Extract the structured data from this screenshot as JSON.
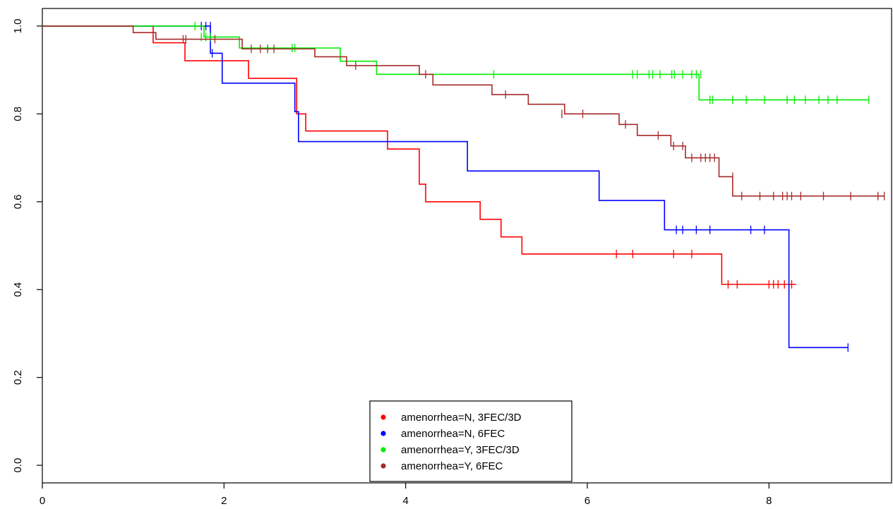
{
  "chart_data": {
    "type": "line",
    "title": "",
    "xlabel": "",
    "ylabel": "",
    "xlim": [
      0,
      9.35
    ],
    "ylim": [
      -0.04,
      1.04
    ],
    "x_ticks": [
      0,
      2,
      4,
      6,
      8
    ],
    "x_tick_labels": [
      "0",
      "2",
      "4",
      "6",
      "8"
    ],
    "y_ticks": [
      0.0,
      0.2,
      0.4,
      0.6,
      0.8,
      1.0
    ],
    "y_tick_labels": [
      "0.0",
      "0.2",
      "0.4",
      "0.6",
      "0.8",
      "1.0"
    ],
    "grid": false,
    "legend_position": "bottom-center",
    "step": true,
    "series": [
      {
        "name": "amenorrhea=N, 3FEC/3D",
        "color": "#ff0000",
        "steps": [
          [
            0,
            1.0
          ],
          [
            1.22,
            0.962
          ],
          [
            1.57,
            0.921
          ],
          [
            2.27,
            0.881
          ],
          [
            2.8,
            0.8
          ],
          [
            2.9,
            0.761
          ],
          [
            3.8,
            0.72
          ],
          [
            4.15,
            0.64
          ],
          [
            4.22,
            0.6
          ],
          [
            4.82,
            0.56
          ],
          [
            5.05,
            0.52
          ],
          [
            5.28,
            0.481
          ],
          [
            7.48,
            0.412
          ],
          [
            8.3,
            0.412
          ]
        ],
        "censored": [
          [
            6.32,
            0.481
          ],
          [
            6.5,
            0.481
          ],
          [
            6.95,
            0.481
          ],
          [
            7.15,
            0.481
          ],
          [
            7.55,
            0.412
          ],
          [
            7.65,
            0.412
          ],
          [
            8.0,
            0.412
          ],
          [
            8.05,
            0.412
          ],
          [
            8.1,
            0.412
          ],
          [
            8.17,
            0.412
          ],
          [
            8.25,
            0.412
          ]
        ]
      },
      {
        "name": "amenorrhea=N, 6FEC",
        "color": "#0000ff",
        "steps": [
          [
            0,
            1.0
          ],
          [
            1.85,
            0.938
          ],
          [
            1.98,
            0.87
          ],
          [
            2.78,
            0.805
          ],
          [
            2.82,
            0.737
          ],
          [
            4.68,
            0.67
          ],
          [
            6.13,
            0.603
          ],
          [
            6.85,
            0.536
          ],
          [
            8.22,
            0.268
          ],
          [
            8.87,
            0.268
          ]
        ],
        "censored": [
          [
            1.75,
            1.0
          ],
          [
            1.8,
            1.0
          ],
          [
            1.85,
            1.0
          ],
          [
            1.87,
            0.938
          ],
          [
            6.98,
            0.536
          ],
          [
            7.05,
            0.536
          ],
          [
            7.2,
            0.536
          ],
          [
            7.35,
            0.536
          ],
          [
            7.8,
            0.536
          ],
          [
            7.95,
            0.536
          ],
          [
            8.87,
            0.268
          ]
        ]
      },
      {
        "name": "amenorrhea=Y, 3FEC/3D",
        "color": "#00ee00",
        "steps": [
          [
            0,
            1.0
          ],
          [
            1.78,
            0.975
          ],
          [
            2.17,
            0.95
          ],
          [
            3.28,
            0.92
          ],
          [
            3.68,
            0.89
          ],
          [
            7.23,
            0.832
          ],
          [
            9.1,
            0.832
          ]
        ],
        "censored": [
          [
            1.68,
            1.0
          ],
          [
            1.75,
            0.975
          ],
          [
            1.8,
            0.975
          ],
          [
            1.85,
            0.975
          ],
          [
            2.75,
            0.95
          ],
          [
            2.78,
            0.95
          ],
          [
            4.97,
            0.89
          ],
          [
            6.5,
            0.89
          ],
          [
            6.55,
            0.89
          ],
          [
            6.68,
            0.89
          ],
          [
            6.72,
            0.89
          ],
          [
            6.8,
            0.89
          ],
          [
            6.93,
            0.89
          ],
          [
            6.96,
            0.89
          ],
          [
            7.05,
            0.89
          ],
          [
            7.15,
            0.89
          ],
          [
            7.2,
            0.89
          ],
          [
            7.25,
            0.89
          ],
          [
            7.35,
            0.832
          ],
          [
            7.38,
            0.832
          ],
          [
            7.6,
            0.832
          ],
          [
            7.75,
            0.832
          ],
          [
            7.95,
            0.832
          ],
          [
            8.2,
            0.832
          ],
          [
            8.28,
            0.832
          ],
          [
            8.4,
            0.832
          ],
          [
            8.55,
            0.832
          ],
          [
            8.65,
            0.832
          ],
          [
            8.75,
            0.832
          ],
          [
            9.1,
            0.832
          ]
        ]
      },
      {
        "name": "amenorrhea=Y, 6FEC",
        "color": "#a52a2a",
        "steps": [
          [
            0,
            1.0
          ],
          [
            1.0,
            0.985
          ],
          [
            1.25,
            0.97
          ],
          [
            2.2,
            0.948
          ],
          [
            3.0,
            0.93
          ],
          [
            3.35,
            0.91
          ],
          [
            4.15,
            0.89
          ],
          [
            4.3,
            0.866
          ],
          [
            4.95,
            0.844
          ],
          [
            5.35,
            0.822
          ],
          [
            5.75,
            0.8
          ],
          [
            6.35,
            0.776
          ],
          [
            6.55,
            0.751
          ],
          [
            6.92,
            0.727
          ],
          [
            7.08,
            0.7
          ],
          [
            7.45,
            0.657
          ],
          [
            7.6,
            0.613
          ],
          [
            9.27,
            0.613
          ]
        ],
        "censored": [
          [
            1.55,
            0.97
          ],
          [
            1.58,
            0.97
          ],
          [
            1.9,
            0.97
          ],
          [
            2.3,
            0.948
          ],
          [
            2.4,
            0.948
          ],
          [
            2.48,
            0.948
          ],
          [
            2.55,
            0.948
          ],
          [
            3.45,
            0.91
          ],
          [
            4.22,
            0.89
          ],
          [
            5.1,
            0.844
          ],
          [
            5.72,
            0.8
          ],
          [
            5.95,
            0.8
          ],
          [
            6.42,
            0.776
          ],
          [
            6.78,
            0.751
          ],
          [
            6.95,
            0.727
          ],
          [
            7.05,
            0.727
          ],
          [
            7.15,
            0.7
          ],
          [
            7.25,
            0.7
          ],
          [
            7.3,
            0.7
          ],
          [
            7.35,
            0.7
          ],
          [
            7.4,
            0.7
          ],
          [
            7.6,
            0.657
          ],
          [
            7.7,
            0.613
          ],
          [
            7.9,
            0.613
          ],
          [
            8.05,
            0.613
          ],
          [
            8.15,
            0.613
          ],
          [
            8.2,
            0.613
          ],
          [
            8.25,
            0.613
          ],
          [
            8.35,
            0.613
          ],
          [
            8.6,
            0.613
          ],
          [
            8.9,
            0.613
          ],
          [
            9.2,
            0.613
          ],
          [
            9.27,
            0.613
          ]
        ]
      }
    ]
  }
}
